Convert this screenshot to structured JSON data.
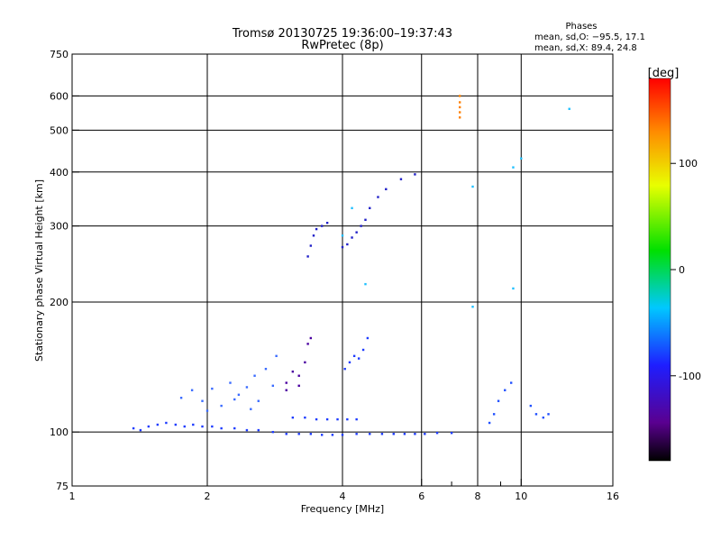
{
  "chart_data": {
    "type": "scatter",
    "title": "Tromsø 20130725 19:36:00–19:37:43",
    "subtitle": "RwPretec (8p)",
    "stats": {
      "heading": "Phases",
      "o_line": "mean, sd,O: −95.5, 17.1",
      "x_line": "mean, sd,X:  89.4, 24.8"
    },
    "xlabel": "Frequency [MHz]",
    "ylabel": "Stationary phase Virtual Height [km]",
    "xscale": "log",
    "yscale": "log",
    "xlim": [
      1,
      16
    ],
    "ylim": [
      75,
      750
    ],
    "xticks": [
      1,
      2,
      4,
      6,
      8,
      10,
      16
    ],
    "xticks_minor": [
      7,
      9
    ],
    "yticks": [
      75,
      100,
      200,
      300,
      400,
      500,
      600,
      750
    ],
    "grid_x": [
      2,
      4,
      6,
      8,
      10
    ],
    "grid_y": [
      100,
      200,
      300,
      400,
      500,
      600
    ],
    "colorbar": {
      "label": "[deg]",
      "range": [
        -180,
        180
      ],
      "ticks": [
        100,
        0,
        -100
      ]
    },
    "series": [
      {
        "traces": [
          [
            1.37,
            102
          ],
          [
            1.42,
            101
          ],
          [
            1.48,
            103
          ],
          [
            1.55,
            104
          ],
          [
            1.62,
            105
          ],
          [
            1.7,
            104
          ],
          [
            1.78,
            103
          ],
          [
            1.86,
            104
          ],
          [
            1.95,
            103
          ],
          [
            2.05,
            103
          ],
          [
            2.15,
            102
          ],
          [
            2.3,
            102
          ],
          [
            2.45,
            101
          ],
          [
            2.6,
            101
          ],
          [
            2.8,
            100
          ],
          [
            3.0,
            99
          ],
          [
            3.2,
            99
          ],
          [
            3.4,
            99
          ],
          [
            3.6,
            98.5
          ],
          [
            3.8,
            98.5
          ],
          [
            4.0,
            98.5
          ],
          [
            4.3,
            99
          ],
          [
            4.6,
            99
          ],
          [
            4.9,
            99
          ],
          [
            5.2,
            99
          ],
          [
            5.5,
            99
          ],
          [
            5.8,
            99
          ],
          [
            6.1,
            99
          ],
          [
            6.5,
            99.5
          ],
          [
            7.0,
            99.5
          ]
        ],
        "color": "#1e3cff"
      },
      {
        "traces": [
          [
            3.1,
            108
          ],
          [
            3.3,
            108
          ],
          [
            3.5,
            107
          ],
          [
            3.7,
            107
          ],
          [
            3.9,
            107
          ],
          [
            4.1,
            107
          ],
          [
            4.3,
            107
          ]
        ],
        "color": "#1e3cff"
      },
      {
        "traces": [
          [
            1.75,
            120
          ],
          [
            1.85,
            125
          ],
          [
            1.95,
            118
          ],
          [
            2.05,
            126
          ],
          [
            2.15,
            115
          ],
          [
            2.25,
            130
          ],
          [
            2.35,
            122
          ],
          [
            2.45,
            127
          ],
          [
            2.55,
            135
          ],
          [
            2.6,
            118
          ],
          [
            2.7,
            140
          ],
          [
            2.8,
            128
          ],
          [
            2.85,
            150
          ],
          [
            2.5,
            113
          ],
          [
            2.3,
            119
          ],
          [
            2.0,
            112
          ]
        ],
        "color": "#3a6bff"
      },
      {
        "traces": [
          [
            3.0,
            130
          ],
          [
            3.1,
            138
          ],
          [
            3.2,
            135
          ],
          [
            3.3,
            145
          ],
          [
            3.35,
            160
          ],
          [
            3.4,
            165
          ],
          [
            3.0,
            125
          ],
          [
            3.2,
            128
          ]
        ],
        "color": "#4a00a0"
      },
      {
        "traces": [
          [
            4.05,
            140
          ],
          [
            4.15,
            145
          ],
          [
            4.25,
            150
          ],
          [
            4.35,
            148
          ],
          [
            4.45,
            155
          ],
          [
            4.55,
            165
          ]
        ],
        "color": "#1e3cff"
      },
      {
        "traces": [
          [
            3.35,
            255
          ],
          [
            3.4,
            270
          ],
          [
            3.45,
            285
          ],
          [
            3.5,
            295
          ],
          [
            3.6,
            300
          ],
          [
            3.7,
            305
          ],
          [
            4.0,
            268
          ],
          [
            4.1,
            272
          ],
          [
            4.2,
            282
          ],
          [
            4.3,
            290
          ],
          [
            4.4,
            300
          ],
          [
            4.5,
            310
          ],
          [
            4.6,
            330
          ],
          [
            4.8,
            350
          ],
          [
            5.0,
            365
          ],
          [
            5.4,
            385
          ],
          [
            5.8,
            395
          ]
        ],
        "color": "#2020c8"
      },
      {
        "traces": [
          [
            7.3,
            600
          ],
          [
            7.3,
            580
          ],
          [
            7.3,
            565
          ],
          [
            7.3,
            550
          ],
          [
            7.3,
            535
          ]
        ],
        "color": "#ff8000"
      },
      {
        "traces": [
          [
            8.5,
            105
          ],
          [
            8.7,
            110
          ],
          [
            8.9,
            118
          ],
          [
            9.2,
            125
          ],
          [
            9.5,
            130
          ],
          [
            10.5,
            115
          ],
          [
            10.8,
            110
          ],
          [
            11.2,
            108
          ],
          [
            11.5,
            110
          ]
        ],
        "color": "#2050ff"
      },
      {
        "traces": [
          [
            9.6,
            215
          ],
          [
            10.0,
            430
          ],
          [
            9.6,
            410
          ],
          [
            12.8,
            560
          ],
          [
            7.8,
            370
          ],
          [
            7.8,
            195
          ],
          [
            4.5,
            220
          ],
          [
            4.0,
            285
          ],
          [
            4.2,
            330
          ]
        ],
        "color": "#20c0ff"
      }
    ]
  }
}
